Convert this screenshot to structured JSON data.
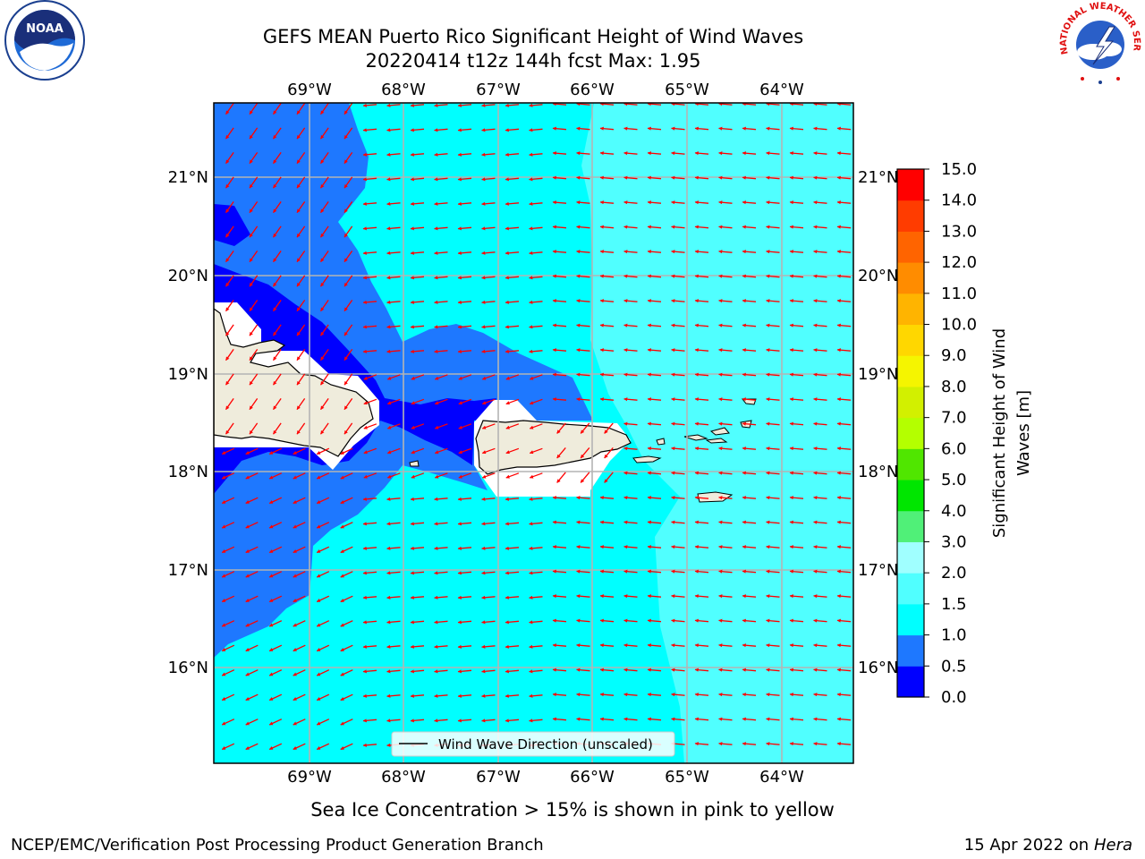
{
  "header": {
    "title_line1": "GEFS MEAN Puerto Rico Significant Height of Wind Waves",
    "title_line2": "20220414 t12z 144h fcst   Max: 1.95"
  },
  "logos": {
    "noaa_text": "NOAA",
    "nws_text": "NATIONAL WEATHER SERVICE"
  },
  "map": {
    "lon_labels": [
      "69°W",
      "68°W",
      "67°W",
      "66°W",
      "65°W",
      "64°W"
    ],
    "lat_labels": [
      "21°N",
      "20°N",
      "19°N",
      "18°N",
      "17°N",
      "16°N"
    ],
    "legend_label": "Wind Wave Direction (unscaled)"
  },
  "colorbar": {
    "label": "Significant Height of Wind Waves [m]",
    "label_line1": "Significant Height of Wind",
    "label_line2": "Waves [m]",
    "ticks": [
      "0.0",
      "0.5",
      "1.0",
      "1.5",
      "2.0",
      "3.0",
      "4.0",
      "5.0",
      "6.0",
      "7.0",
      "8.0",
      "9.0",
      "10.0",
      "11.0",
      "12.0",
      "13.0",
      "14.0",
      "15.0"
    ],
    "colors": [
      "#0000ff",
      "#1e78ff",
      "#00ffff",
      "#50ffff",
      "#a0ffff",
      "#50f078",
      "#00e600",
      "#50e600",
      "#b4ff00",
      "#d2f000",
      "#f5f500",
      "#ffd700",
      "#ffb400",
      "#ff8c00",
      "#ff6400",
      "#ff3c00",
      "#ff0000"
    ]
  },
  "footer": {
    "note": "Sea Ice Concentration > 15% is shown in pink to yellow",
    "credit": "NCEP/EMC/Verification Post Processing Product Generation Branch",
    "date": "15 Apr 2022 on ",
    "machine": "Hera"
  }
}
